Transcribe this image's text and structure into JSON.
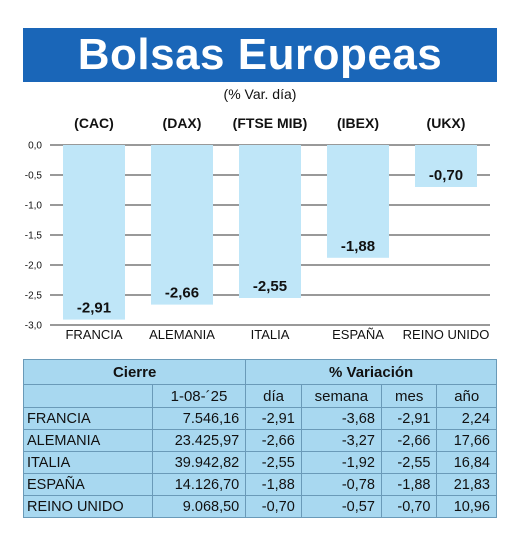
{
  "header": {
    "title": "Bolsas Europeas",
    "subtitle": "(% Var. día)"
  },
  "colors": {
    "header_bg": "#1a66b8",
    "bar": "#bfe6f8",
    "table_bg": "#a8d8f0"
  },
  "chart_data": {
    "type": "bar",
    "categories": [
      "FRANCIA",
      "ALEMANIA",
      "ITALIA",
      "ESPAÑA",
      "REINO UNIDO"
    ],
    "index_labels": [
      "(CAC)",
      "(DAX)",
      "(FTSE MIB)",
      "(IBEX)",
      "(UKX)"
    ],
    "values": [
      -2.91,
      -2.66,
      -2.55,
      -1.88,
      -0.7
    ],
    "value_labels": [
      "-2,91",
      "-2,66",
      "-2,55",
      "-1,88",
      "-0,70"
    ],
    "ylim": [
      -3.0,
      0.0
    ],
    "yticks": [
      0.0,
      -0.5,
      -1.0,
      -1.5,
      -2.0,
      -2.5,
      -3.0
    ],
    "ytick_labels": [
      "0,0",
      "-0,5",
      "-1,0",
      "-1,5",
      "-2,0",
      "-2,5",
      "-3,0"
    ],
    "grid": true
  },
  "table": {
    "header_cierre": "Cierre",
    "header_variacion": "% Variación",
    "date": "1-08-´25",
    "cols": [
      "día",
      "semana",
      "mes",
      "año"
    ],
    "rows": [
      {
        "name": "FRANCIA",
        "cierre": "7.546,16",
        "dia": "-2,91",
        "semana": "-3,68",
        "mes": "-2,91",
        "anio": "2,24"
      },
      {
        "name": "ALEMANIA",
        "cierre": "23.425,97",
        "dia": "-2,66",
        "semana": "-3,27",
        "mes": "-2,66",
        "anio": "17,66"
      },
      {
        "name": "ITALIA",
        "cierre": "39.942,82",
        "dia": "-2,55",
        "semana": "-1,92",
        "mes": "-2,55",
        "anio": "16,84"
      },
      {
        "name": "ESPAÑA",
        "cierre": "14.126,70",
        "dia": "-1,88",
        "semana": "-0,78",
        "mes": "-1,88",
        "anio": "21,83"
      },
      {
        "name": "REINO UNIDO",
        "cierre": "9.068,50",
        "dia": "-0,70",
        "semana": "-0,57",
        "mes": "-0,70",
        "anio": "10,96"
      }
    ]
  }
}
